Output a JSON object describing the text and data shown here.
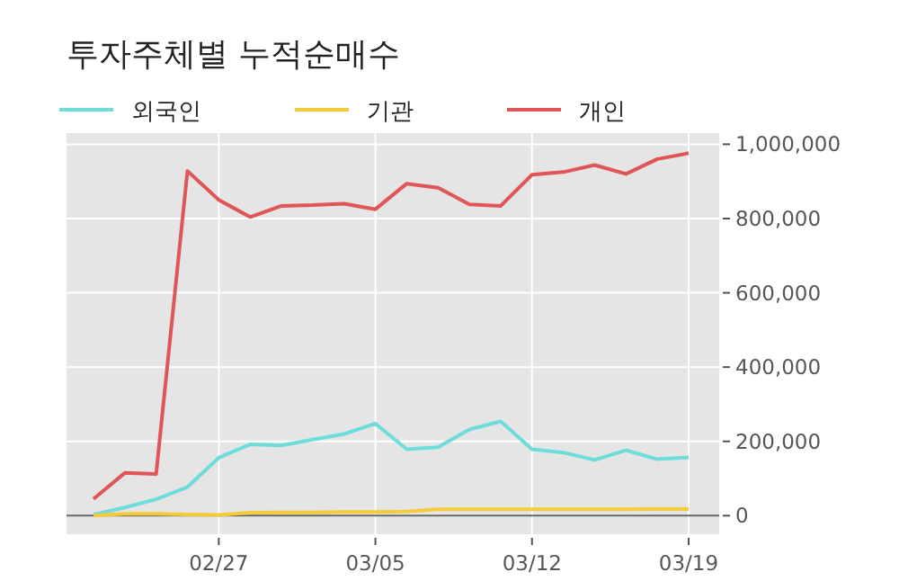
{
  "chart_data": {
    "type": "line",
    "title": "투자주체별 누적순매수",
    "categories": [
      null,
      null,
      null,
      null,
      "02/27",
      null,
      null,
      null,
      null,
      "03/05",
      null,
      null,
      null,
      null,
      "03/12",
      null,
      null,
      null,
      null,
      "03/19"
    ],
    "series": [
      {
        "name": "외국인",
        "color": "#6fdcdc",
        "values": [
          3000,
          22000,
          44000,
          77000,
          156000,
          192000,
          189000,
          205000,
          220000,
          248000,
          179000,
          184000,
          232000,
          254000,
          179000,
          170000,
          150000,
          176000,
          152000,
          157000
        ]
      },
      {
        "name": "기관",
        "color": "#f5cb3c",
        "values": [
          0,
          5000,
          5000,
          3000,
          2000,
          8000,
          9000,
          9000,
          10000,
          10000,
          11000,
          17000,
          17000,
          17000,
          17000,
          17000,
          17000,
          17000,
          18000,
          18000
        ]
      },
      {
        "name": "개인",
        "color": "#e05555",
        "values": [
          45000,
          115000,
          112000,
          928000,
          850000,
          804000,
          834000,
          836000,
          840000,
          825000,
          894000,
          883000,
          838000,
          834000,
          918000,
          925000,
          944000,
          920000,
          960000,
          976000
        ]
      }
    ],
    "ylim": [
      -50000,
      1030000
    ],
    "yticks": [
      0,
      {
        "value": 200000,
        "label": "200,000"
      },
      {
        "value": 400000,
        "label": "400,000"
      },
      {
        "value": 600000,
        "label": "600,000"
      },
      {
        "value": 800000,
        "label": "800,000"
      },
      {
        "value": 1000000,
        "label": "1,000,000"
      }
    ],
    "ref_lines": [
      {
        "axis": "y",
        "value": 0,
        "color": "#666666"
      }
    ],
    "grid": true,
    "legend": "top left"
  }
}
